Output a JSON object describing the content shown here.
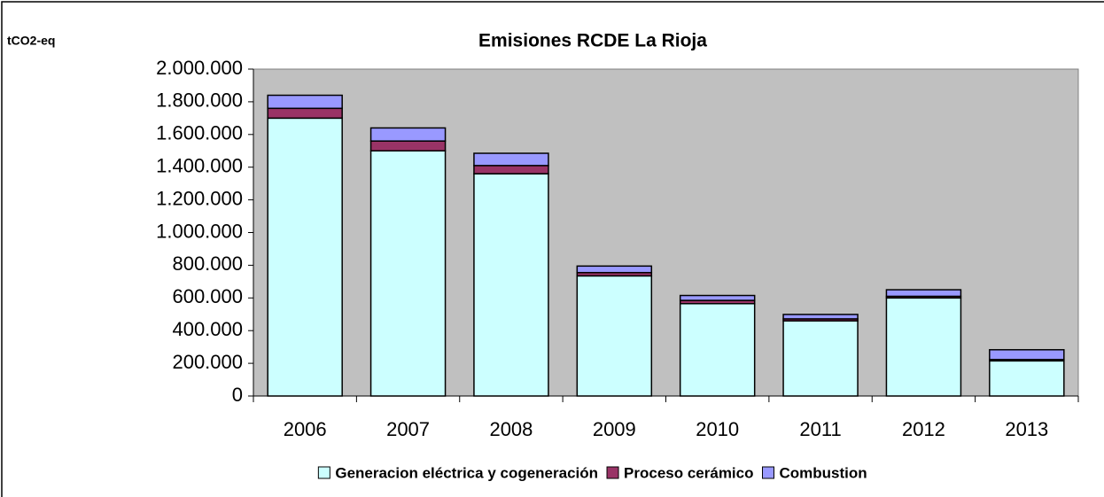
{
  "chart_data": {
    "type": "stacked_bar",
    "title": "Emisiones RCDE La Rioja",
    "ylabel": "tCO2-eq",
    "categories": [
      "2006",
      "2007",
      "2008",
      "2009",
      "2010",
      "2011",
      "2012",
      "2013"
    ],
    "series": [
      {
        "name": "Generacion eléctrica y cogeneración",
        "color": "#ccffff",
        "values": [
          1700000,
          1500000,
          1360000,
          735000,
          565000,
          460000,
          600000,
          215000
        ]
      },
      {
        "name": "Proceso cerámico",
        "color": "#993366",
        "values": [
          60000,
          60000,
          50000,
          20000,
          20000,
          12000,
          10000,
          8000
        ]
      },
      {
        "name": "Combustion",
        "color": "#9999ff",
        "values": [
          80000,
          80000,
          75000,
          40000,
          30000,
          27000,
          40000,
          60000
        ]
      }
    ],
    "ylim": [
      0,
      2000000
    ],
    "yticks": [
      0,
      {
        "value": 200000,
        "label": "200.000"
      },
      {
        "value": 400000,
        "label": "400.000"
      },
      {
        "value": 600000,
        "label": "600.000"
      },
      {
        "value": 800000,
        "label": "800.000"
      },
      {
        "value": 1000000,
        "label": "1.000.000"
      },
      {
        "value": 1200000,
        "label": "1.200.000"
      },
      {
        "value": 1400000,
        "label": "1.400.000"
      },
      {
        "value": 1600000,
        "label": "1.600.000"
      },
      {
        "value": 1800000,
        "label": "1.800.000"
      },
      {
        "value": 2000000,
        "label": "2.000.000"
      }
    ],
    "plot_background": "#c0c0c0",
    "legend": "bottom"
  }
}
